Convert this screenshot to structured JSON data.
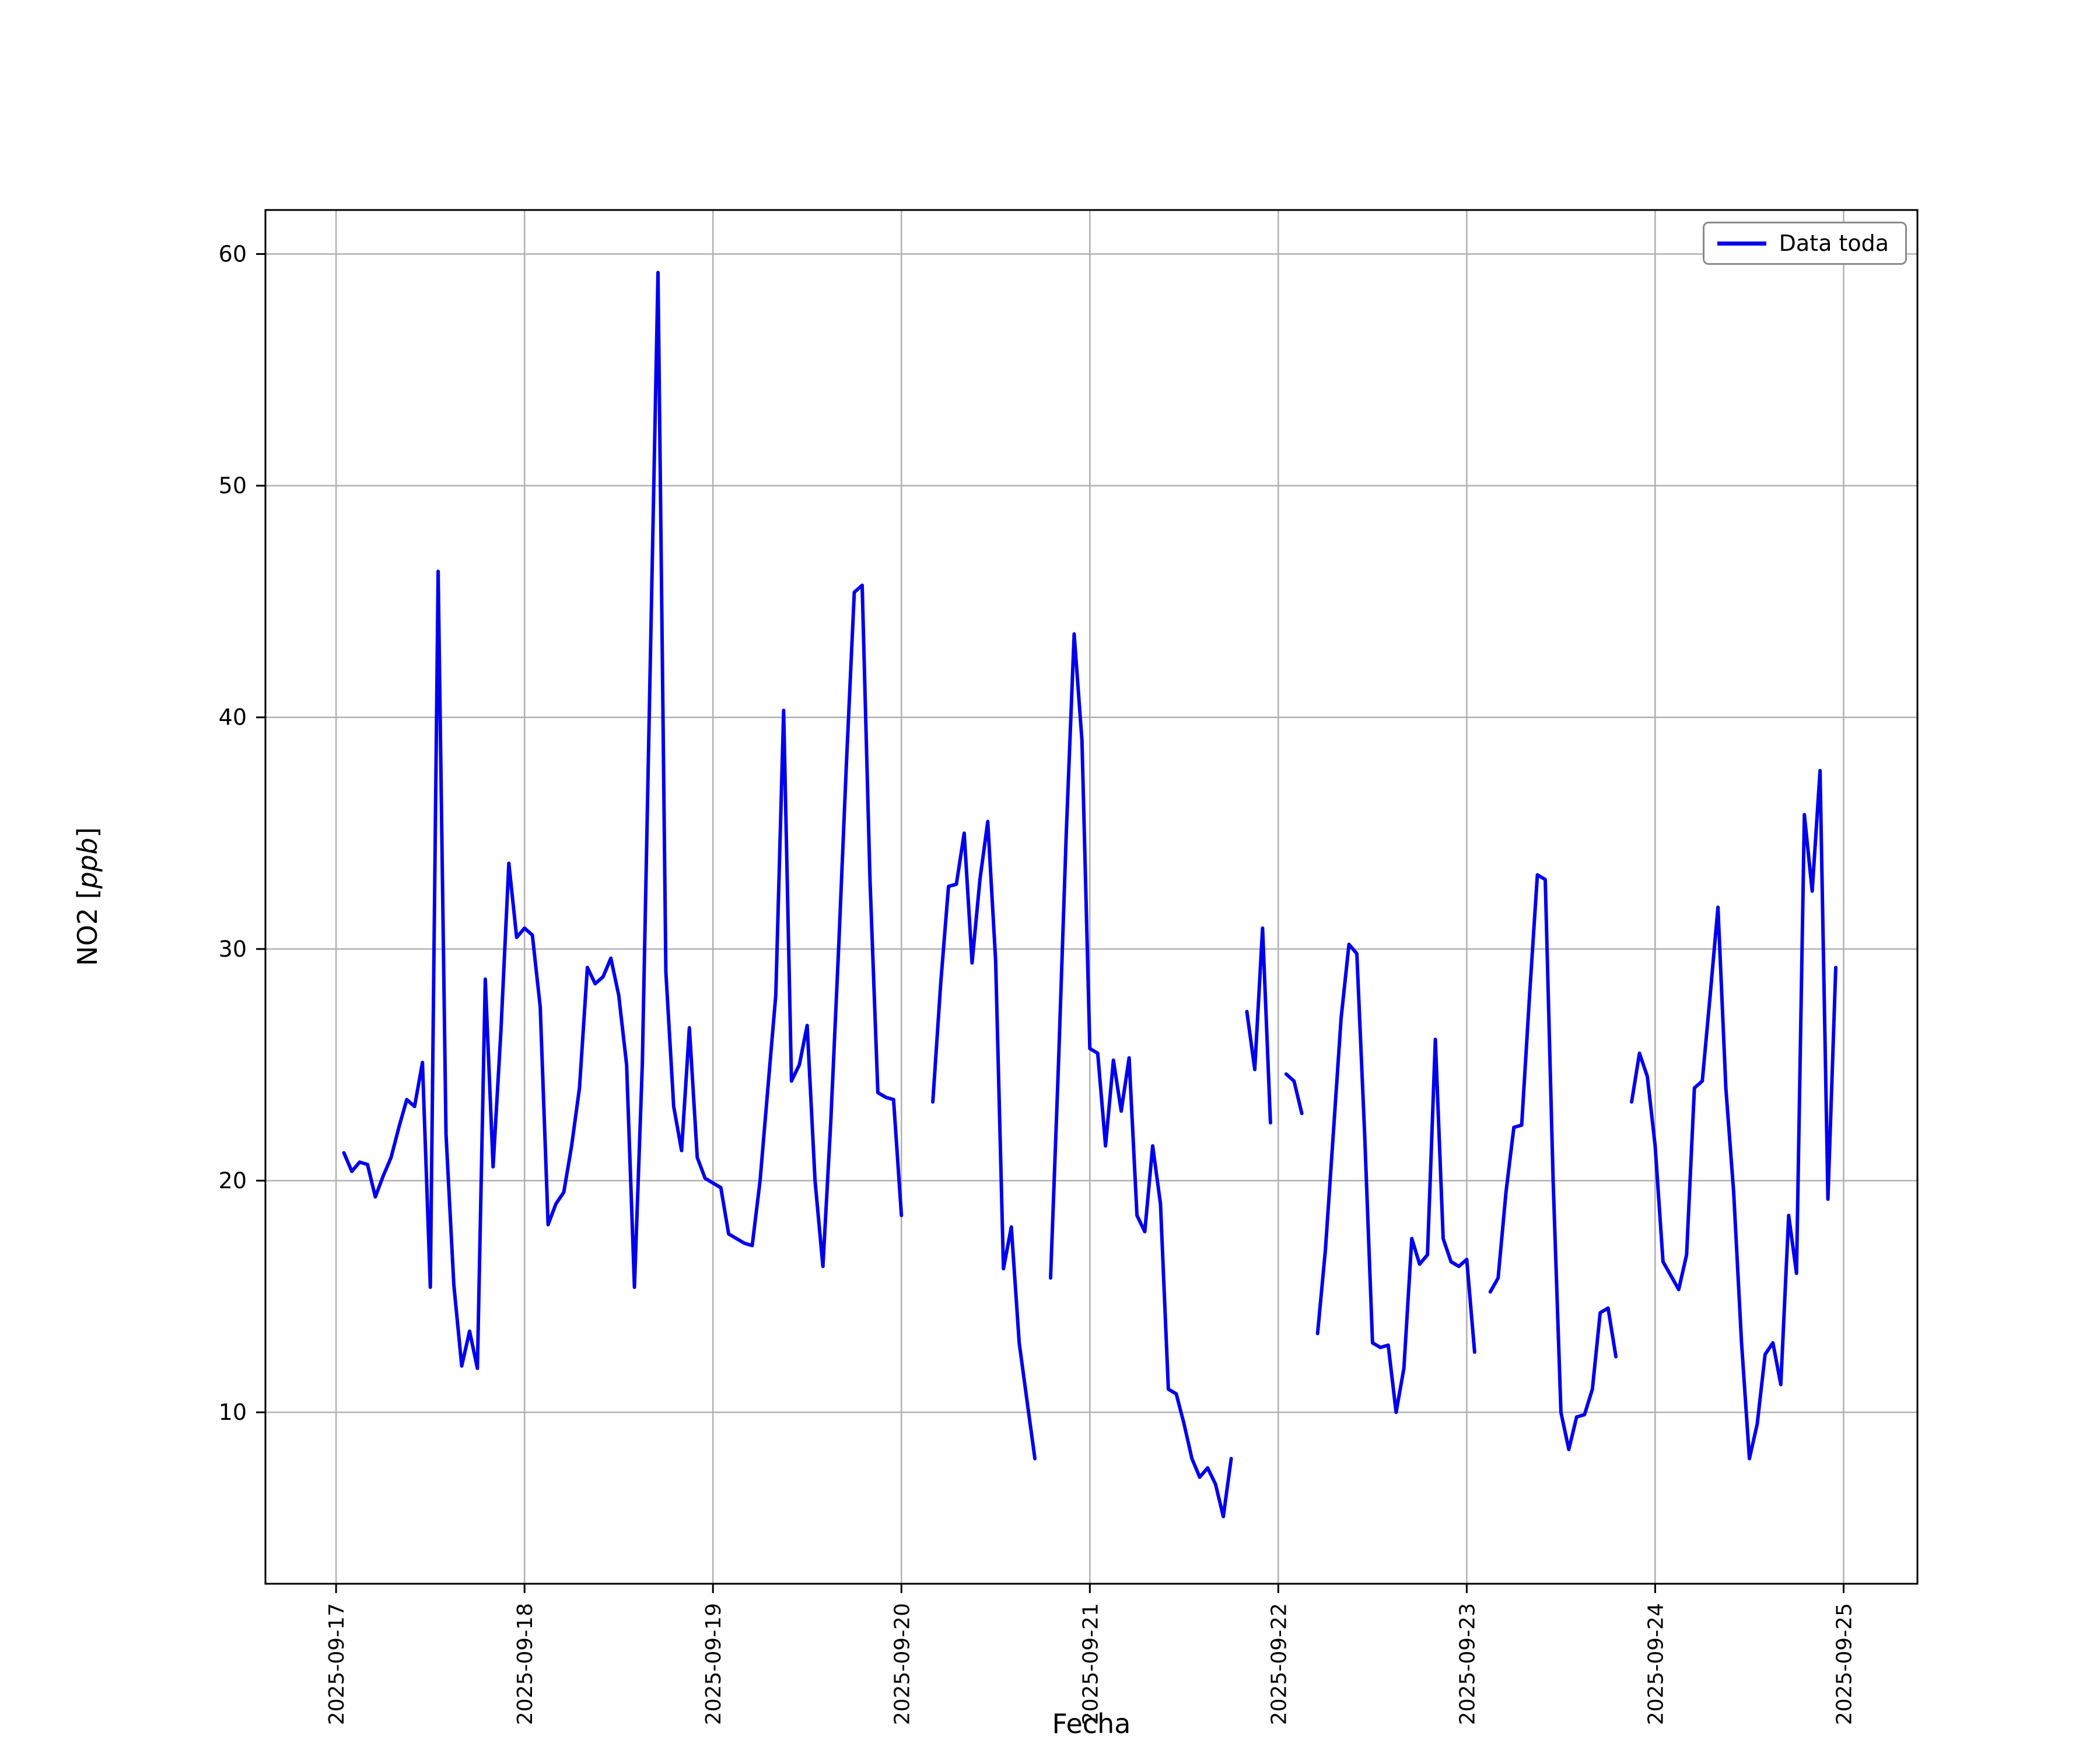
{
  "figure": {
    "background": "#ffffff"
  },
  "axes": {
    "x_label": "Fecha",
    "y_label_prefix": "NO2 [",
    "y_label_italic": "ppb",
    "y_label_suffix": "]",
    "y_ticks": [
      10,
      20,
      30,
      40,
      50,
      60
    ],
    "x_tick_labels": [
      "2025-09-17",
      "2025-09-18",
      "2025-09-19",
      "2025-09-20",
      "2025-09-21",
      "2025-09-22",
      "2025-09-23",
      "2025-09-24",
      "2025-09-25"
    ],
    "y_range": [
      2.6,
      61.9
    ],
    "x_range_hours": [
      -9,
      201.4
    ],
    "grid": true,
    "grid_color": "#b0b0b0",
    "spine_color": "#000000",
    "tick_color": "#000000"
  },
  "legend": {
    "label": "Data toda",
    "line_color": "#0000ee",
    "position": "upper right"
  },
  "chart_data": {
    "type": "line",
    "title": "",
    "xlabel": "Fecha",
    "ylabel": "NO2 [ppb]",
    "x_unit": "hours since 2025-09-17 00:00",
    "x_start_hour": 0,
    "x_step_hours": 1,
    "x_tick_hours": [
      0,
      24,
      48,
      72,
      96,
      120,
      144,
      168,
      192
    ],
    "x_tick_labels": [
      "2025-09-17",
      "2025-09-18",
      "2025-09-19",
      "2025-09-20",
      "2025-09-21",
      "2025-09-22",
      "2025-09-23",
      "2025-09-24",
      "2025-09-25"
    ],
    "ylim": [
      2.6,
      61.9
    ],
    "grid": true,
    "legend_position": "upper right",
    "series": [
      {
        "name": "Data toda",
        "color": "#0000ee",
        "y": [
          null,
          21.2,
          20.4,
          20.8,
          20.7,
          19.3,
          20.2,
          21.0,
          22.3,
          23.5,
          23.2,
          25.1,
          15.4,
          46.3,
          22.0,
          15.5,
          12.0,
          13.5,
          11.9,
          28.7,
          20.6,
          26.5,
          33.7,
          30.5,
          30.9,
          30.6,
          27.5,
          18.1,
          19.0,
          19.5,
          21.5,
          24.0,
          29.2,
          28.5,
          28.8,
          29.6,
          28.0,
          25.0,
          15.4,
          25.0,
          42.0,
          59.2,
          29.0,
          23.2,
          21.3,
          26.6,
          21.0,
          20.1,
          19.9,
          19.7,
          17.7,
          17.5,
          17.3,
          17.2,
          20.0,
          24.0,
          28.0,
          40.3,
          24.3,
          25.0,
          26.7,
          20.0,
          16.3,
          22.5,
          30.0,
          38.0,
          45.4,
          45.7,
          33.0,
          23.8,
          23.6,
          23.5,
          18.5,
          null,
          null,
          null,
          23.4,
          28.5,
          32.7,
          32.8,
          35.0,
          29.4,
          33.0,
          35.5,
          29.5,
          16.2,
          18.0,
          13.0,
          10.5,
          8.0,
          null,
          15.8,
          25.0,
          35.0,
          43.6,
          39.0,
          25.7,
          25.5,
          21.5,
          25.2,
          23.0,
          25.3,
          18.5,
          17.8,
          21.5,
          19.0,
          11.0,
          10.8,
          9.5,
          8.0,
          7.2,
          7.6,
          6.9,
          5.5,
          8.0,
          null,
          27.3,
          24.8,
          30.9,
          22.5,
          null,
          24.6,
          24.3,
          22.9,
          null,
          13.4,
          17.0,
          22.0,
          27.0,
          30.2,
          29.8,
          22.0,
          13.0,
          12.8,
          12.9,
          10.0,
          11.9,
          17.5,
          16.4,
          16.8,
          26.1,
          17.5,
          16.5,
          16.3,
          16.6,
          12.6,
          null,
          15.2,
          15.8,
          19.5,
          22.3,
          22.4,
          28.0,
          33.2,
          33.0,
          20.0,
          10.0,
          8.4,
          9.8,
          9.9,
          11.0,
          14.3,
          14.5,
          12.4,
          null,
          23.4,
          25.5,
          24.5,
          21.5,
          16.5,
          15.9,
          15.3,
          16.8,
          24.0,
          24.3,
          28.0,
          31.8,
          24.0,
          19.5,
          13.0,
          8.0,
          9.5,
          12.5,
          13.0,
          11.2,
          18.5,
          16.0,
          35.8,
          32.5,
          37.7,
          19.2,
          29.2
        ]
      }
    ]
  }
}
